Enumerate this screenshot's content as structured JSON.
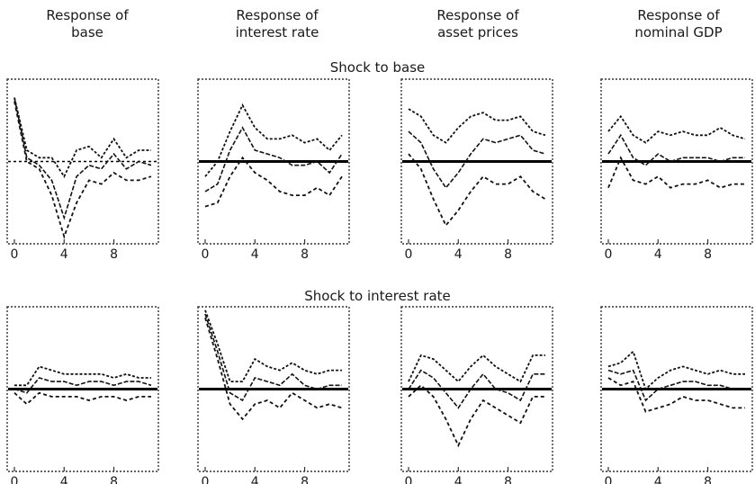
{
  "column_titles": [
    "Response of\nbase",
    "Response of\ninterest rate",
    "Response of\nasset prices",
    "Response of\nnominal GDP"
  ],
  "row_titles": [
    "Shock to base",
    "Shock to interest rate"
  ],
  "colors": {
    "line": "#111111",
    "zero_line": "#000000",
    "frame": "#333333"
  },
  "chart_data": [
    {
      "type": "line",
      "shock": "Shock to base",
      "response": "Response of base",
      "x": [
        0,
        1,
        2,
        3,
        4,
        5,
        6,
        7,
        8,
        9,
        10,
        11
      ],
      "xticks": [
        0,
        4,
        8
      ],
      "ylim": [
        -1,
        1
      ],
      "zero_line": "dotted",
      "series": [
        {
          "values": [
            0.85,
            0.05,
            -0.05,
            -0.25,
            -0.75,
            -0.2,
            -0.05,
            -0.1,
            0.1,
            -0.1,
            0.0,
            -0.05
          ]
        },
        {
          "values": [
            0.85,
            0.15,
            0.05,
            0.05,
            -0.2,
            0.15,
            0.2,
            0.05,
            0.3,
            0.05,
            0.15,
            0.15
          ]
        },
        {
          "values": [
            0.8,
            0.0,
            -0.1,
            -0.45,
            -1.0,
            -0.55,
            -0.25,
            -0.3,
            -0.15,
            -0.25,
            -0.25,
            -0.2
          ]
        }
      ]
    },
    {
      "type": "line",
      "shock": "Shock to base",
      "response": "Response of interest rate",
      "x": [
        0,
        1,
        2,
        3,
        4,
        5,
        6,
        7,
        8,
        9,
        10,
        11
      ],
      "xticks": [
        0,
        4,
        8
      ],
      "ylim": [
        -1,
        1
      ],
      "zero_line": "solid",
      "series": [
        {
          "values": [
            -0.4,
            -0.3,
            0.15,
            0.45,
            0.15,
            0.1,
            0.05,
            -0.05,
            -0.05,
            0.0,
            -0.15,
            0.1
          ]
        },
        {
          "values": [
            -0.2,
            0.0,
            0.4,
            0.75,
            0.45,
            0.3,
            0.3,
            0.35,
            0.25,
            0.3,
            0.15,
            0.35
          ]
        },
        {
          "values": [
            -0.6,
            -0.55,
            -0.2,
            0.05,
            -0.15,
            -0.25,
            -0.4,
            -0.45,
            -0.45,
            -0.35,
            -0.45,
            -0.2
          ]
        }
      ]
    },
    {
      "type": "line",
      "shock": "Shock to base",
      "response": "Response of asset prices",
      "x": [
        0,
        1,
        2,
        3,
        4,
        5,
        6,
        7,
        8,
        9,
        10,
        11
      ],
      "xticks": [
        0,
        4,
        8
      ],
      "ylim": [
        -1,
        1
      ],
      "zero_line": "solid",
      "series": [
        {
          "values": [
            0.4,
            0.25,
            -0.1,
            -0.35,
            -0.15,
            0.1,
            0.3,
            0.25,
            0.3,
            0.35,
            0.15,
            0.1
          ]
        },
        {
          "values": [
            0.7,
            0.6,
            0.35,
            0.25,
            0.45,
            0.6,
            0.65,
            0.55,
            0.55,
            0.6,
            0.4,
            0.35
          ]
        },
        {
          "values": [
            0.1,
            -0.1,
            -0.5,
            -0.85,
            -0.65,
            -0.4,
            -0.2,
            -0.3,
            -0.3,
            -0.2,
            -0.4,
            -0.5
          ]
        }
      ]
    },
    {
      "type": "line",
      "shock": "Shock to base",
      "response": "Response of nominal GDP",
      "x": [
        0,
        1,
        2,
        3,
        4,
        5,
        6,
        7,
        8,
        9,
        10,
        11
      ],
      "xticks": [
        0,
        4,
        8
      ],
      "ylim": [
        -1,
        1
      ],
      "zero_line": "solid",
      "series": [
        {
          "values": [
            0.1,
            0.35,
            0.05,
            -0.05,
            0.1,
            0.0,
            0.05,
            0.05,
            0.05,
            0.0,
            0.05,
            0.05
          ]
        },
        {
          "values": [
            0.4,
            0.6,
            0.35,
            0.25,
            0.4,
            0.35,
            0.4,
            0.35,
            0.35,
            0.45,
            0.35,
            0.3
          ]
        },
        {
          "values": [
            -0.35,
            0.05,
            -0.25,
            -0.3,
            -0.2,
            -0.35,
            -0.3,
            -0.3,
            -0.25,
            -0.35,
            -0.3,
            -0.3
          ]
        }
      ]
    },
    {
      "type": "line",
      "shock": "Shock to interest rate",
      "response": "Response of base",
      "x": [
        0,
        1,
        2,
        3,
        4,
        5,
        6,
        7,
        8,
        9,
        10,
        11
      ],
      "xticks": [
        0,
        4,
        8
      ],
      "ylim": [
        -1,
        1
      ],
      "zero_line": "solid",
      "series": [
        {
          "values": [
            0.0,
            -0.05,
            0.15,
            0.1,
            0.1,
            0.05,
            0.1,
            0.1,
            0.05,
            0.1,
            0.1,
            0.05
          ]
        },
        {
          "values": [
            0.05,
            0.05,
            0.3,
            0.25,
            0.2,
            0.2,
            0.2,
            0.2,
            0.15,
            0.2,
            0.15,
            0.15
          ]
        },
        {
          "values": [
            -0.05,
            -0.2,
            -0.05,
            -0.1,
            -0.1,
            -0.1,
            -0.15,
            -0.1,
            -0.1,
            -0.15,
            -0.1,
            -0.1
          ]
        }
      ]
    },
    {
      "type": "line",
      "shock": "Shock to interest rate",
      "response": "Response of interest rate",
      "x": [
        0,
        1,
        2,
        3,
        4,
        5,
        6,
        7,
        8,
        9,
        10,
        11
      ],
      "xticks": [
        0,
        4,
        8
      ],
      "ylim": [
        -1,
        1
      ],
      "zero_line": "solid",
      "series": [
        {
          "values": [
            1.0,
            0.5,
            -0.05,
            -0.15,
            0.15,
            0.1,
            0.05,
            0.2,
            0.05,
            0.0,
            0.05,
            0.05
          ]
        },
        {
          "values": [
            1.05,
            0.6,
            0.1,
            0.1,
            0.4,
            0.3,
            0.25,
            0.35,
            0.25,
            0.2,
            0.25,
            0.25
          ]
        },
        {
          "values": [
            0.95,
            0.4,
            -0.2,
            -0.4,
            -0.2,
            -0.15,
            -0.25,
            -0.05,
            -0.15,
            -0.25,
            -0.2,
            -0.25
          ]
        }
      ]
    },
    {
      "type": "line",
      "shock": "Shock to interest rate",
      "response": "Response of asset prices",
      "x": [
        0,
        1,
        2,
        3,
        4,
        5,
        6,
        7,
        8,
        9,
        10,
        11
      ],
      "xticks": [
        0,
        4,
        8
      ],
      "ylim": [
        -1,
        1
      ],
      "zero_line": "solid",
      "series": [
        {
          "values": [
            0.0,
            0.25,
            0.15,
            -0.05,
            -0.25,
            0.0,
            0.2,
            0.0,
            -0.05,
            -0.15,
            0.2,
            0.2
          ]
        },
        {
          "values": [
            0.1,
            0.45,
            0.4,
            0.25,
            0.1,
            0.3,
            0.45,
            0.3,
            0.2,
            0.1,
            0.45,
            0.45
          ]
        },
        {
          "values": [
            -0.1,
            0.05,
            -0.1,
            -0.4,
            -0.75,
            -0.4,
            -0.15,
            -0.25,
            -0.35,
            -0.45,
            -0.1,
            -0.1
          ]
        }
      ]
    },
    {
      "type": "line",
      "shock": "Shock to interest rate",
      "response": "Response of nominal GDP",
      "x": [
        0,
        1,
        2,
        3,
        4,
        5,
        6,
        7,
        8,
        9,
        10,
        11
      ],
      "xticks": [
        0,
        4,
        8
      ],
      "ylim": [
        -1,
        1
      ],
      "zero_line": "solid",
      "series": [
        {
          "values": [
            0.25,
            0.2,
            0.25,
            -0.15,
            0.0,
            0.05,
            0.1,
            0.1,
            0.05,
            0.05,
            0.0,
            0.0
          ]
        },
        {
          "values": [
            0.3,
            0.35,
            0.5,
            0.0,
            0.15,
            0.25,
            0.3,
            0.25,
            0.2,
            0.25,
            0.2,
            0.2
          ]
        },
        {
          "values": [
            0.15,
            0.05,
            0.1,
            -0.3,
            -0.25,
            -0.2,
            -0.1,
            -0.15,
            -0.15,
            -0.2,
            -0.25,
            -0.25
          ]
        }
      ]
    }
  ]
}
